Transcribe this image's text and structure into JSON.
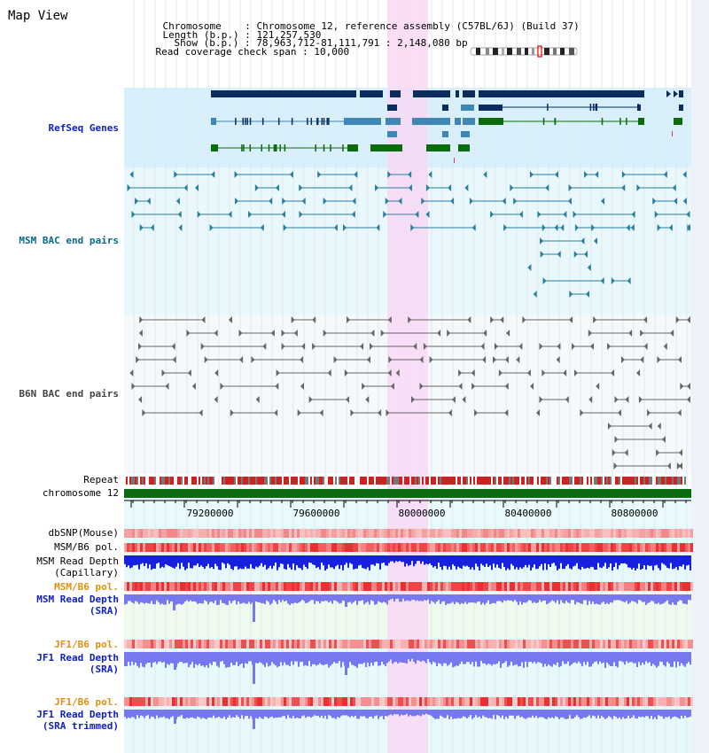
{
  "title": "Map View",
  "info": [
    {
      "label": "Chromosome",
      "value": "Chromosome 12, reference assembly (C57BL/6J) (Build 37)"
    },
    {
      "label": "Length (b.p.)",
      "value": "121,257,530"
    },
    {
      "label": "Show (b.p.)",
      "value": "78,963,712-81,111,791 : 2,148,080 bp"
    },
    {
      "label": "Read coverage check span",
      "value": "10,000"
    }
  ],
  "tracks": {
    "refseq": "RefSeq Genes",
    "msm_bac": "MSM BAC end pairs",
    "b6n_bac": "B6N BAC end pairs",
    "repeat": "Repeat",
    "chromosome": "chromosome 12",
    "dbsnp": "dbSNP(Mouse)",
    "msm_b6_pol": "MSM/B6 pol.",
    "msm_read_cap_1": "MSM Read Depth",
    "msm_read_cap_2": "(Capillary)",
    "msm_b6_pol_sra": "MSM/B6 pol.",
    "msm_read_sra_1": "MSM Read Depth",
    "msm_read_sra_2": "(SRA)",
    "jf1_b6_pol": "JF1/B6 pol.",
    "jf1_read_sra_1": "JF1 Read Depth",
    "jf1_read_sra_2": "(SRA)",
    "jf1_b6_pol_trim": "JF1/B6 pol.",
    "jf1_read_trim_1": "JF1 Read Depth",
    "jf1_read_trim_2": "(SRA trimmed)"
  },
  "axis": {
    "ticks": [
      "79200000",
      "79600000",
      "80000000",
      "80400000",
      "80800000"
    ]
  },
  "colors": {
    "refseq_bg": "#d8f0fc",
    "msm_bg": "#e8f8fc",
    "b6n_bg": "#f4fafc",
    "highlight": "#f8d8f4",
    "gene_dark": "#0b2c5e",
    "gene_mid": "#3e86b4",
    "gene_green": "#0a6b0a",
    "msm_line": "#2a7e9e",
    "b6n_line": "#666666",
    "repeat_red": "#cc2222",
    "chrom_green": "#0b6b12",
    "snp_red": "#ee5555",
    "depth_blue": "#1820e0",
    "depth_light": "#7777ee",
    "label_blue": "#1020c0",
    "label_orange": "#e09010",
    "label_teal": "#0a6a8a"
  }
}
